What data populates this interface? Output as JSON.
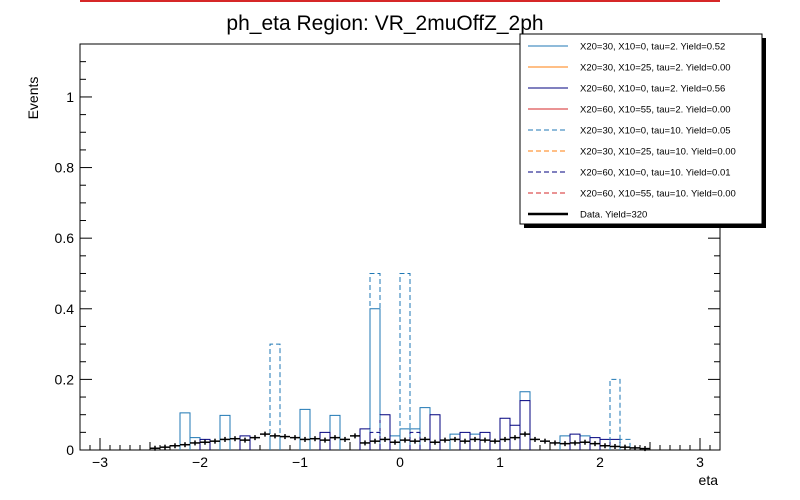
{
  "chart_data": {
    "type": "histogram",
    "title": "ph_eta Region: VR_2muOffZ_2ph",
    "xlabel": "eta",
    "ylabel": "Events",
    "xlim": [
      -3.2,
      3.2
    ],
    "ylim": [
      0,
      1.15
    ],
    "bin_width": 0.1,
    "x_ticks": [
      -3,
      -2,
      -1,
      0,
      1,
      2,
      3
    ],
    "x_tick_labels": [
      "−3",
      "−2",
      "−1",
      "0",
      "1",
      "2",
      "3"
    ],
    "y_ticks": [
      0,
      0.2,
      0.4,
      0.6,
      0.8,
      1
    ],
    "y_tick_labels": [
      "0",
      "0.2",
      "0.4",
      "0.6",
      "0.8",
      "1"
    ],
    "legend_position": "top-right",
    "series": [
      {
        "name": "X20=30, X10=0, tau=2. Yield=0.52",
        "color": "#1f77b4",
        "style": "solid",
        "bins": [
          [
            -2.2,
            0.105
          ],
          [
            -2.1,
            0.035
          ],
          [
            -1.8,
            0.098
          ],
          [
            -1.3,
            0.04
          ],
          [
            -1.0,
            0.115
          ],
          [
            -0.7,
            0.098
          ],
          [
            -0.3,
            0.4
          ],
          [
            -0.1,
            0.04
          ],
          [
            0.0,
            0.06
          ],
          [
            0.1,
            0.06
          ],
          [
            0.2,
            0.12
          ],
          [
            0.5,
            0.045
          ],
          [
            0.7,
            0.045
          ],
          [
            1.2,
            0.165
          ],
          [
            1.6,
            0.04
          ],
          [
            1.8,
            0.04
          ]
        ]
      },
      {
        "name": "X20=30, X10=25, tau=2. Yield=0.00",
        "color": "#ff7f0e",
        "style": "solid",
        "bins": []
      },
      {
        "name": "X20=60, X10=0, tau=2. Yield=0.56",
        "color": "#00007f",
        "style": "solid",
        "bins": [
          [
            -2.0,
            0.03
          ],
          [
            -1.6,
            0.04
          ],
          [
            -0.8,
            0.05
          ],
          [
            -0.4,
            0.06
          ],
          [
            -0.2,
            0.1
          ],
          [
            0.3,
            0.1
          ],
          [
            0.6,
            0.05
          ],
          [
            0.8,
            0.05
          ],
          [
            1.0,
            0.09
          ],
          [
            1.1,
            0.07
          ],
          [
            1.2,
            0.14
          ],
          [
            1.7,
            0.045
          ],
          [
            1.9,
            0.035
          ],
          [
            2.0,
            0.03
          ],
          [
            2.1,
            0.03
          ]
        ]
      },
      {
        "name": "X20=60, X10=55, tau=2. Yield=0.00",
        "color": "#d62728",
        "style": "solid",
        "bins": []
      },
      {
        "name": "X20=30, X10=0, tau=10. Yield=0.05",
        "color": "#1f77b4",
        "style": "dashed",
        "bins": [
          [
            -1.3,
            0.3
          ],
          [
            -0.3,
            0.5
          ],
          [
            0.0,
            0.5
          ],
          [
            2.1,
            0.2
          ],
          [
            2.2,
            0.03
          ]
        ]
      },
      {
        "name": "X20=30, X10=25, tau=10. Yield=0.00",
        "color": "#ff7f0e",
        "style": "dashed",
        "bins": []
      },
      {
        "name": "X20=60, X10=0, tau=10. Yield=0.01",
        "color": "#00007f",
        "style": "dashed",
        "bins": [
          [
            -0.3,
            0.05
          ],
          [
            0.1,
            0.05
          ]
        ]
      },
      {
        "name": "X20=60, X10=55, tau=10. Yield=0.00",
        "color": "#d62728",
        "style": "dashed",
        "bins": []
      },
      {
        "name": "Data. Yield=320",
        "color": "#000000",
        "style": "data",
        "points": [
          [
            -2.45,
            0.005
          ],
          [
            -2.35,
            0.008
          ],
          [
            -2.25,
            0.012
          ],
          [
            -2.15,
            0.015
          ],
          [
            -2.05,
            0.02
          ],
          [
            -1.95,
            0.022
          ],
          [
            -1.85,
            0.025
          ],
          [
            -1.75,
            0.03
          ],
          [
            -1.65,
            0.032
          ],
          [
            -1.55,
            0.028
          ],
          [
            -1.45,
            0.035
          ],
          [
            -1.35,
            0.045
          ],
          [
            -1.25,
            0.04
          ],
          [
            -1.15,
            0.038
          ],
          [
            -1.05,
            0.035
          ],
          [
            -0.95,
            0.03
          ],
          [
            -0.85,
            0.032
          ],
          [
            -0.75,
            0.028
          ],
          [
            -0.65,
            0.035
          ],
          [
            -0.55,
            0.03
          ],
          [
            -0.45,
            0.04
          ],
          [
            -0.35,
            0.02
          ],
          [
            -0.25,
            0.025
          ],
          [
            -0.15,
            0.03
          ],
          [
            -0.05,
            0.022
          ],
          [
            0.05,
            0.028
          ],
          [
            0.15,
            0.025
          ],
          [
            0.25,
            0.03
          ],
          [
            0.35,
            0.022
          ],
          [
            0.45,
            0.028
          ],
          [
            0.55,
            0.03
          ],
          [
            0.65,
            0.025
          ],
          [
            0.75,
            0.03
          ],
          [
            0.85,
            0.028
          ],
          [
            0.95,
            0.025
          ],
          [
            1.05,
            0.03
          ],
          [
            1.15,
            0.035
          ],
          [
            1.25,
            0.045
          ],
          [
            1.35,
            0.03
          ],
          [
            1.45,
            0.025
          ],
          [
            1.55,
            0.02
          ],
          [
            1.65,
            0.018
          ],
          [
            1.75,
            0.02
          ],
          [
            1.85,
            0.022
          ],
          [
            1.95,
            0.018
          ],
          [
            2.05,
            0.012
          ],
          [
            2.15,
            0.01
          ],
          [
            2.25,
            0.008
          ],
          [
            2.35,
            0.006
          ],
          [
            2.45,
            0.004
          ]
        ]
      }
    ]
  }
}
